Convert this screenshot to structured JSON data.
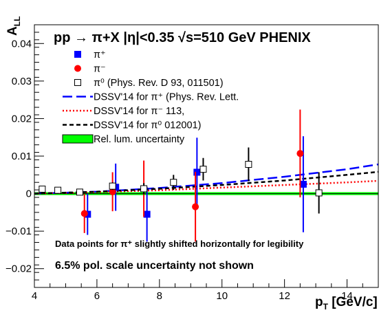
{
  "chart_data": {
    "type": "scatter",
    "title": "pp → π+X |η|<0.35  √s=510 GeV  PHENIX",
    "xlabel": "p_T [GeV/c]",
    "xlabel_main": "p",
    "xlabel_sub": "T",
    "xlabel_unit": " [GeV/c]",
    "ylabel": "A_LL",
    "ylabel_main": "A",
    "ylabel_sub": "LL",
    "xlim": [
      4,
      15
    ],
    "ylim": [
      -0.025,
      0.045
    ],
    "xticks": [
      4,
      6,
      8,
      10,
      12,
      14
    ],
    "xtick_labels": [
      "4",
      "6",
      "8",
      "10",
      "12",
      "14"
    ],
    "yticks": [
      -0.02,
      -0.01,
      0,
      0.01,
      0.02,
      0.03,
      0.04
    ],
    "ytick_labels": [
      "−0.02",
      "−0.01",
      "0",
      "0.01",
      "0.02",
      "0.03",
      "0.04"
    ],
    "grid": false,
    "legend_placement": "top-left",
    "series": [
      {
        "name": "π⁺",
        "marker": "square",
        "color": "#0000ff",
        "x": [
          5.7,
          6.6,
          7.6,
          9.2,
          12.6
        ],
        "y": [
          -0.0055,
          0.0017,
          -0.0055,
          0.0057,
          0.0025
        ],
        "err": [
          0.0055,
          0.0063,
          0.0073,
          0.0092,
          0.0128
        ]
      },
      {
        "name": "π⁻",
        "marker": "circle",
        "color": "#ff0000",
        "x": [
          5.6,
          6.5,
          7.5,
          9.15,
          12.5
        ],
        "y": [
          -0.0053,
          0.0005,
          0.0013,
          -0.0035,
          0.0107
        ],
        "err": [
          0.0052,
          0.0052,
          0.0075,
          0.0093,
          0.0117
        ]
      },
      {
        "name": "π⁰ (Phys. Rev. D 93, 011501)",
        "marker": "open-square",
        "color": "#000000",
        "x": [
          4.25,
          4.75,
          5.45,
          6.5,
          7.5,
          8.45,
          9.4,
          10.85,
          13.1
        ],
        "y": [
          0.0012,
          0.0009,
          0.0004,
          0.002,
          0.0013,
          0.003,
          0.0065,
          0.0078,
          0.0002
        ],
        "err": [
          0.0004,
          0.0005,
          0.0006,
          0.001,
          0.0015,
          0.002,
          0.003,
          0.0045,
          0.0055
        ]
      }
    ],
    "curves": [
      {
        "name": "DSSV'14 for π⁺ (Phys. Rev. Lett.",
        "color": "#0000ff",
        "style": "long-dash",
        "x": [
          4,
          6,
          8,
          10,
          12,
          14,
          15
        ],
        "y": [
          0.0,
          0.0005,
          0.0015,
          0.0028,
          0.0045,
          0.0065,
          0.0078
        ]
      },
      {
        "name": "DSSV'14 for π⁻       113,",
        "color": "#ff0000",
        "style": "dotted",
        "x": [
          4,
          6,
          8,
          10,
          12,
          14,
          15
        ],
        "y": [
          0.0,
          0.0004,
          0.0009,
          0.0016,
          0.0023,
          0.003,
          0.0034
        ]
      },
      {
        "name": "DSSV'14 for π⁰      012001)",
        "color": "#000000",
        "style": "short-dash",
        "x": [
          4,
          6,
          8,
          10,
          12,
          14,
          15
        ],
        "y": [
          0.0,
          0.0005,
          0.0013,
          0.0023,
          0.0035,
          0.005,
          0.0058
        ]
      }
    ],
    "band": {
      "name": "Rel. lum. uncertainty",
      "color": "#00ff00",
      "y_center": 0,
      "half_width": 0.0002
    },
    "legend": [
      {
        "kind": "square",
        "color": "#0000ff",
        "text": "π⁺"
      },
      {
        "kind": "circle",
        "color": "#ff0000",
        "text": "π⁻"
      },
      {
        "kind": "open-square",
        "color": "#000000",
        "text": "π⁰ (Phys. Rev. D 93, 011501)"
      },
      {
        "kind": "long-dash",
        "color": "#0000ff",
        "text": "DSSV'14 for π⁺ (Phys. Rev. Lett."
      },
      {
        "kind": "dotted",
        "color": "#ff0000",
        "text": "DSSV'14 for π⁻       113,"
      },
      {
        "kind": "short-dash",
        "color": "#000000",
        "text": "DSSV'14 for π⁰      012001)"
      },
      {
        "kind": "band",
        "color": "#00ff00",
        "text": "Rel. lum. uncertainty"
      }
    ],
    "annotations": [
      "Data points for  π⁺ slightly shifted horizontally for legibility",
      "6.5% pol. scale uncertainty not shown"
    ]
  }
}
